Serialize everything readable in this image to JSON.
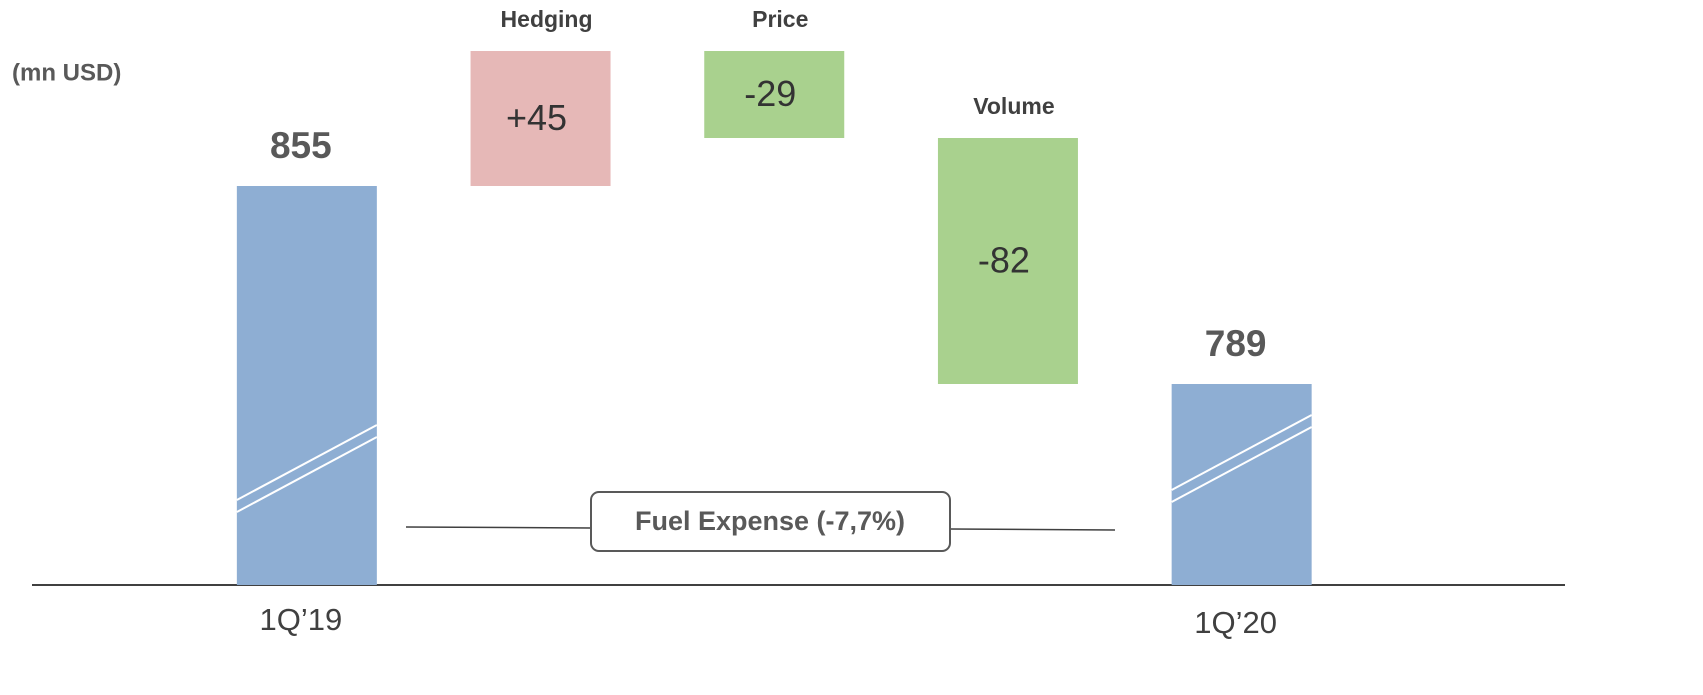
{
  "chart_data": {
    "type": "waterfall",
    "unit_label": "(mn USD)",
    "categories": [
      "1Q’19",
      "Hedging",
      "Price",
      "Volume",
      "1Q’20"
    ],
    "measures": [
      "total",
      "relative",
      "relative",
      "relative",
      "total"
    ],
    "values": [
      855,
      45,
      -29,
      -82,
      789
    ],
    "value_labels": [
      "855",
      "+45",
      "-29",
      "-82",
      "789"
    ],
    "colors": [
      "#8eaed3",
      "#e6b8b7",
      "#a9d18e",
      "#a9d18e",
      "#8eaed3"
    ],
    "ylim": [
      722,
      912
    ],
    "annotation": "Fuel Expense (-7,7%)"
  }
}
